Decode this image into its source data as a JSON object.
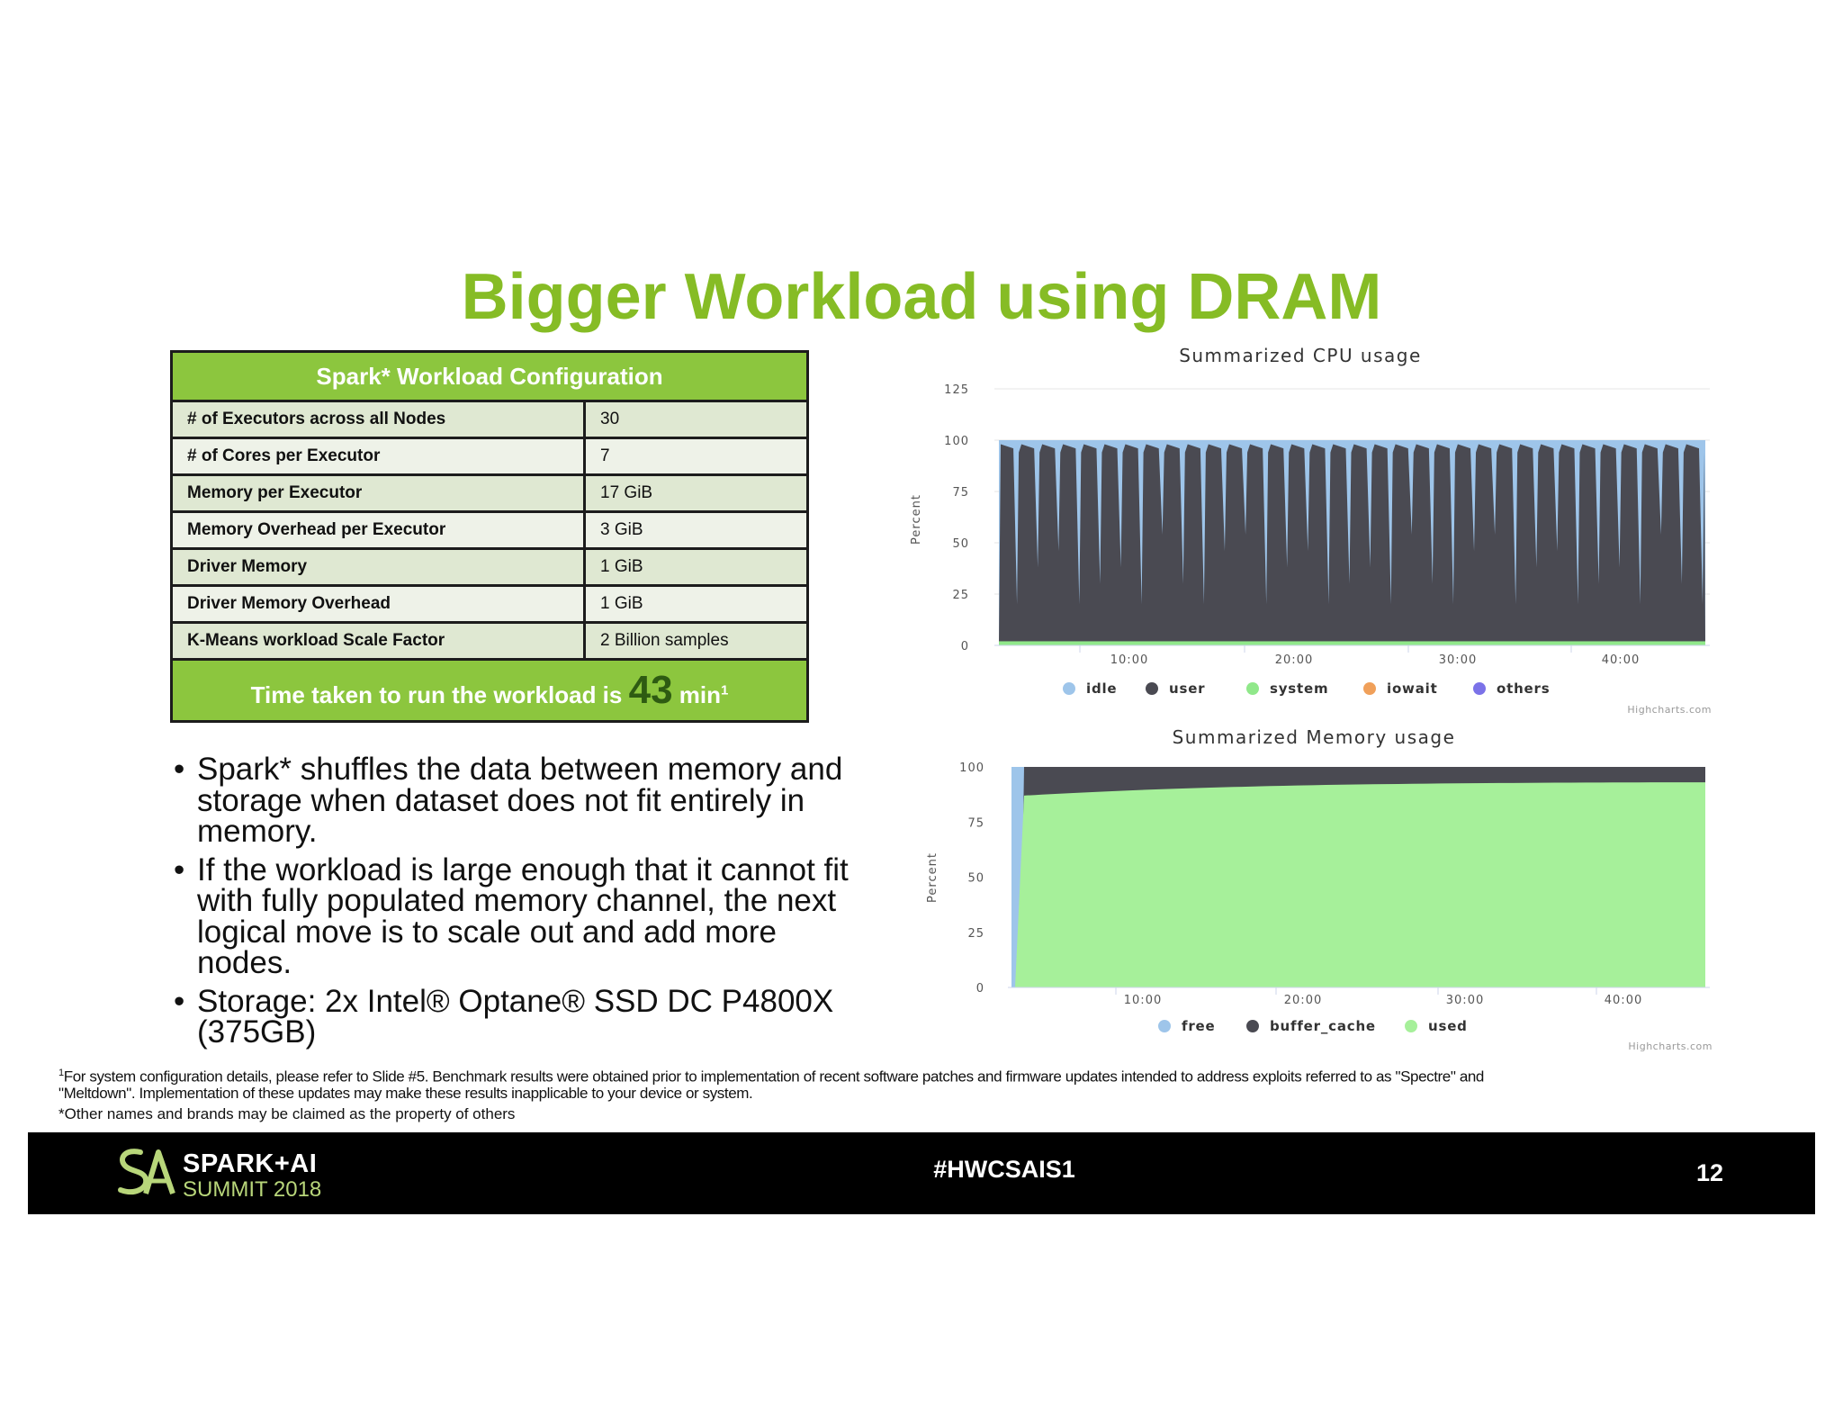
{
  "title": "Bigger Workload using DRAM",
  "config_table": {
    "header": "Spark* Workload Configuration",
    "rows": [
      {
        "label": "# of Executors across all Nodes",
        "value": "30"
      },
      {
        "label": "# of Cores per Executor",
        "value": "7"
      },
      {
        "label": "Memory per Executor",
        "value": "17 GiB"
      },
      {
        "label": "Memory Overhead per Executor",
        "value": "3 GiB"
      },
      {
        "label": "Driver Memory",
        "value": "1 GiB"
      },
      {
        "label": "Driver Memory Overhead",
        "value": "1 GiB"
      },
      {
        "label": "K-Means workload Scale Factor",
        "value": "2 Billion samples"
      }
    ],
    "footer_prefix": "Time taken to run the workload is",
    "footer_value": "43",
    "footer_suffix": "min",
    "footer_sup": "1"
  },
  "bullets": [
    "Spark* shuffles the data between memory and storage when dataset does not fit entirely in memory.",
    "If the workload is large enough that it cannot fit with fully populated memory channel, the next logical move is to scale out and add more nodes.",
    "Storage: 2x Intel® Optane® SSD DC P4800X (375GB)"
  ],
  "bullet_glyph": "•",
  "footnote": {
    "sup": "1",
    "line1": "For system configuration details, please refer to Slide #5. Benchmark results were obtained prior to implementation of recent software patches and firmware updates intended to address exploits referred to as \"Spectre\" and",
    "line2": "\"Meltdown\".  Implementation of these updates may make these results inapplicable to your device or system.",
    "line3": "*Other names and brands may be claimed as the property of others"
  },
  "footer": {
    "hashtag": "#HWCSAIS1",
    "page_number": "12",
    "logo_line1": "SPARK+AI",
    "logo_line2": "SUMMIT 2018",
    "logo_icon": "spark-ai-logo-icon"
  },
  "chart_data": [
    {
      "type": "area",
      "title": "Summarized CPU usage",
      "ylabel": "Percent",
      "xlabel": "",
      "ylim": [
        0,
        125
      ],
      "yticks": [
        "0",
        "25",
        "50",
        "75",
        "100",
        "125"
      ],
      "xticks": [
        "10:00",
        "20:00",
        "30:00",
        "40:00"
      ],
      "stacked": true,
      "series": [
        {
          "name": "idle",
          "color": "#9ec5ea"
        },
        {
          "name": "user",
          "color": "#4a4a52"
        },
        {
          "name": "system",
          "color": "#90e88a"
        },
        {
          "name": "iowait",
          "color": "#f0a05a"
        },
        {
          "name": "others",
          "color": "#7b72e8"
        }
      ],
      "pattern": {
        "user_peak_percent": 98,
        "user_trough_percent": 30,
        "system_percent": 2,
        "cycles": 34
      },
      "credits": "Highcharts.com",
      "legend_position": "bottom"
    },
    {
      "type": "area",
      "title": "Summarized Memory usage",
      "ylabel": "Percent",
      "xlabel": "",
      "ylim": [
        0,
        100
      ],
      "yticks": [
        "0",
        "25",
        "50",
        "75",
        "100"
      ],
      "xticks": [
        "10:00",
        "20:00",
        "30:00",
        "40:00"
      ],
      "stacked": true,
      "series": [
        {
          "name": "free",
          "color": "#9ec5ea"
        },
        {
          "name": "buffer_cache",
          "color": "#4a4a52"
        },
        {
          "name": "used",
          "color": "#a6f09a"
        }
      ],
      "used_percent_start": 87,
      "used_percent_end": 93,
      "credits": "Highcharts.com",
      "legend_position": "bottom"
    }
  ]
}
